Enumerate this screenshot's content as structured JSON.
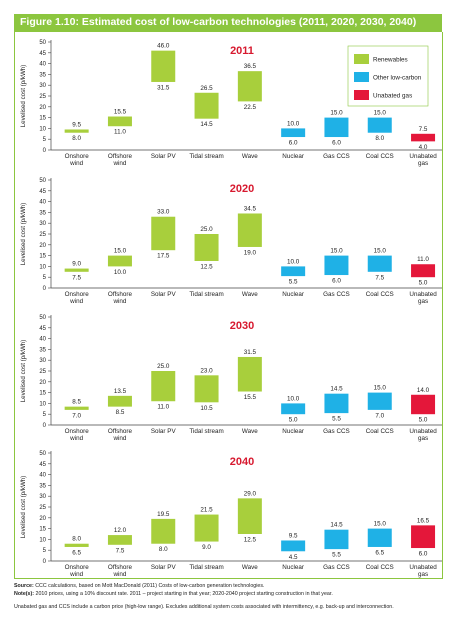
{
  "figure_title": "Figure 1.10: Estimated cost of low-carbon technologies (2011, 2020, 2030, 2040)",
  "legend": [
    {
      "label": "Renewables",
      "color": "#a8cf3c"
    },
    {
      "label": "Other low-carbon",
      "color": "#1fb1e6"
    },
    {
      "label": "Unabated gas",
      "color": "#e4173a"
    }
  ],
  "footnotes": {
    "source_label": "Source:",
    "source_text": "CCC calculations, based on Mott MacDonald (2011) Costs of low-carbon generation technologies.",
    "notes_label": "Note(s):",
    "notes_text": "2010 prices, using a 10% discount rate. 2011 – project starting in that year; 2020-2040 project starting construction in that year.",
    "extra_text": "Unabated gas and CCS include a carbon price (high-low range). Excludes additional system costs associated with intermittency, e.g. back-up and interconnection."
  },
  "chart_data": [
    {
      "type": "bar",
      "title": "2011",
      "ylabel": "Levelised cost (p/kWh)",
      "ylim": [
        0,
        50
      ],
      "yticks": [
        0,
        5,
        10,
        15,
        20,
        25,
        30,
        35,
        40,
        45,
        50
      ],
      "categories": [
        "Onshore wind",
        "Offshore wind",
        "Solar PV",
        "Tidal stream",
        "Wave",
        "Nuclear",
        "Gas CCS",
        "Coal CCS",
        "Unabated gas"
      ],
      "groups": [
        "Renewables",
        "Renewables",
        "Renewables",
        "Renewables",
        "Renewables",
        "Other low-carbon",
        "Other low-carbon",
        "Other low-carbon",
        "Unabated gas"
      ],
      "low": [
        8.0,
        11.0,
        31.5,
        14.5,
        22.5,
        6.0,
        6.0,
        8.0,
        4.0
      ],
      "high": [
        9.5,
        15.5,
        46.0,
        26.5,
        36.5,
        10.0,
        15.0,
        15.0,
        7.5
      ],
      "low_labels": [
        "8.0",
        "11.0",
        "31.5",
        "14.5",
        "22.5",
        "6.0",
        "6.0",
        "8.0",
        "4.0"
      ],
      "high_labels": [
        "9.5",
        "15.5",
        "46.0",
        "26.5",
        "36.5",
        "10.0",
        "15.0",
        "15.0",
        "7.5"
      ]
    },
    {
      "type": "bar",
      "title": "2020",
      "ylabel": "Levelised cost (p/kWh)",
      "ylim": [
        0,
        50
      ],
      "yticks": [
        0,
        5,
        10,
        15,
        20,
        25,
        30,
        35,
        40,
        45,
        50
      ],
      "categories": [
        "Onshore wind",
        "Offshore wind",
        "Solar PV",
        "Tidal stream",
        "Wave",
        "Nuclear",
        "Gas CCS",
        "Coal CCS",
        "Unabated gas"
      ],
      "groups": [
        "Renewables",
        "Renewables",
        "Renewables",
        "Renewables",
        "Renewables",
        "Other low-carbon",
        "Other low-carbon",
        "Other low-carbon",
        "Unabated gas"
      ],
      "low": [
        7.5,
        10.0,
        17.5,
        12.5,
        19.0,
        5.5,
        6.0,
        7.5,
        5.0
      ],
      "high": [
        9.0,
        15.0,
        33.0,
        25.0,
        34.5,
        10.0,
        15.0,
        15.0,
        11.0
      ],
      "low_labels": [
        "7.5",
        "10.0",
        "17.5",
        "12.5",
        "19.0",
        "5.5",
        "6.0",
        "7.5",
        "5.0"
      ],
      "high_labels": [
        "9.0",
        "15.0",
        "33.0",
        "25.0",
        "34.5",
        "10.0",
        "15.0",
        "15.0",
        "11.0"
      ]
    },
    {
      "type": "bar",
      "title": "2030",
      "ylabel": "Levelised cost (p/kWh)",
      "ylim": [
        0,
        50
      ],
      "yticks": [
        0,
        5,
        10,
        15,
        20,
        25,
        30,
        35,
        40,
        45,
        50
      ],
      "categories": [
        "Onshore wind",
        "Offshore wind",
        "Solar PV",
        "Tidal stream",
        "Wave",
        "Nuclear",
        "Gas CCS",
        "Coal CCS",
        "Unabated gas"
      ],
      "groups": [
        "Renewables",
        "Renewables",
        "Renewables",
        "Renewables",
        "Renewables",
        "Other low-carbon",
        "Other low-carbon",
        "Other low-carbon",
        "Unabated gas"
      ],
      "low": [
        7.0,
        8.5,
        11.0,
        10.5,
        15.5,
        5.0,
        5.5,
        7.0,
        5.0
      ],
      "high": [
        8.5,
        13.5,
        25.0,
        23.0,
        31.5,
        10.0,
        14.5,
        15.0,
        14.0
      ],
      "low_labels": [
        "7.0",
        "8.5",
        "11.0",
        "10.5",
        "15.5",
        "5.0",
        "5.5",
        "7.0",
        "5.0"
      ],
      "high_labels": [
        "8.5",
        "13.5",
        "25.0",
        "23.0",
        "31.5",
        "10.0",
        "14.5",
        "15.0",
        "14.0"
      ]
    },
    {
      "type": "bar",
      "title": "2040",
      "ylabel": "Levelised cost (p/kWh)",
      "ylim": [
        0,
        50
      ],
      "yticks": [
        0,
        5,
        10,
        15,
        20,
        25,
        30,
        35,
        40,
        45,
        50
      ],
      "categories": [
        "Onshore wind",
        "Offshore wind",
        "Solar PV",
        "Tidal stream",
        "Wave",
        "Nuclear",
        "Gas CCS",
        "Coal CCS",
        "Unabated gas"
      ],
      "groups": [
        "Renewables",
        "Renewables",
        "Renewables",
        "Renewables",
        "Renewables",
        "Other low-carbon",
        "Other low-carbon",
        "Other low-carbon",
        "Unabated gas"
      ],
      "low": [
        6.5,
        7.5,
        8.0,
        9.0,
        12.5,
        4.5,
        5.5,
        6.5,
        6.0
      ],
      "high": [
        8.0,
        12.0,
        19.5,
        21.5,
        29.0,
        9.5,
        14.5,
        15.0,
        16.5
      ],
      "low_labels": [
        "6.5",
        "7.5",
        "8.0",
        "9.0",
        "12.5",
        "4.5",
        "5.5",
        "6.5",
        "6.0"
      ],
      "high_labels": [
        "8.0",
        "12.0",
        "19.5",
        "21.5",
        "29.0",
        "9.5",
        "14.5",
        "15.0",
        "16.5"
      ]
    }
  ]
}
